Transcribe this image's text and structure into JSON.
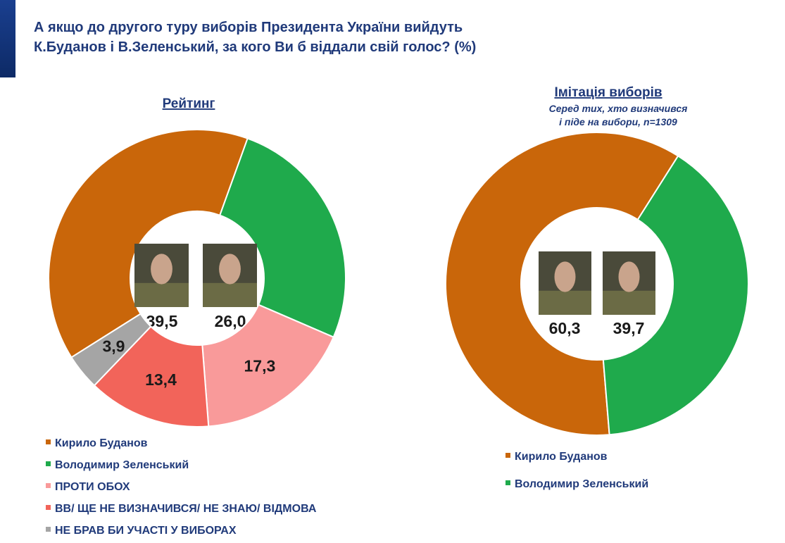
{
  "title": [
    "А якщо до другого туру виборів Президента України вийдуть",
    "К.Буданов і В.Зеленський, за кого Ви б віддали свій голос? (%)"
  ],
  "chart_data": [
    {
      "type": "donut",
      "title": "Рейтинг",
      "categories": [
        "Кирило Буданов",
        "Володимир Зеленський",
        "ПРОТИ ОБОХ",
        "ВВ/ ЩЕ НЕ ВИЗНАЧИВСЯ/ НЕ ЗНАЮ/ ВІДМОВА",
        "НЕ БРАВ БИ УЧАСТІ У ВИБОРАХ"
      ],
      "values": [
        39.5,
        26.0,
        17.3,
        13.4,
        3.9
      ],
      "value_labels": [
        "39,5",
        "26,0",
        "17,3",
        "13,4",
        "3,9"
      ],
      "colors": [
        "#c9660a",
        "#1faa4c",
        "#f99a9a",
        "#f2645a",
        "#a5a5a5"
      ]
    },
    {
      "type": "donut",
      "title": "Імітація виборів",
      "subtitle": [
        "Серед тих, хто визначився",
        "і піде на вибори, n=1309"
      ],
      "categories": [
        "Кирило Буданов",
        "Володимир Зеленський"
      ],
      "values": [
        60.3,
        39.7
      ],
      "value_labels": [
        "60,3",
        "39,7"
      ],
      "colors": [
        "#c9660a",
        "#1faa4c"
      ]
    }
  ]
}
